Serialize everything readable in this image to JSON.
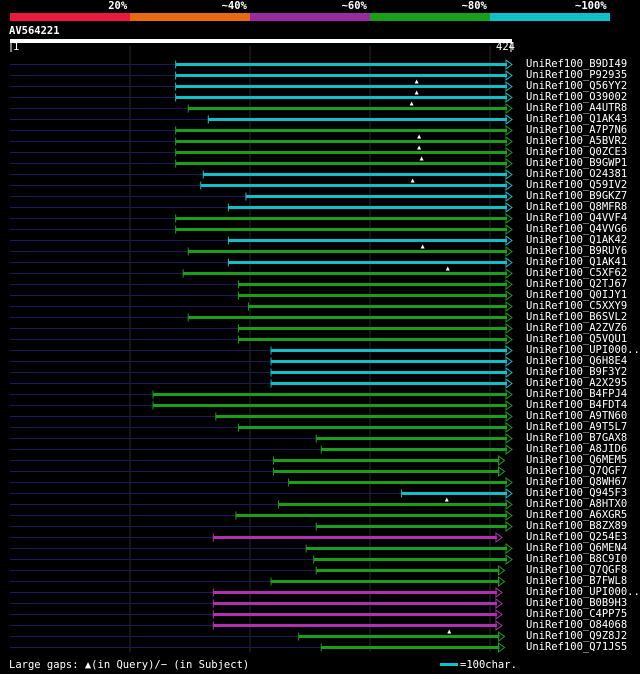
{
  "scale_labels": [
    "20%",
    "~40%",
    "~60%",
    "~80%",
    "~100%"
  ],
  "scale_colors": [
    "#e8193c",
    "#e86a10",
    "#9a2aa0",
    "#18a018",
    "#10c0c8"
  ],
  "query": {
    "title": "AV564221",
    "start": "1",
    "end": "424"
  },
  "legend": {
    "gaps_text": "Large gaps: ▲(in Query)/− (in Subject)",
    "scale_text": "=100char."
  },
  "hits": [
    {
      "name": "UniRef100_B9DI49",
      "color": "cyan",
      "start": 0.33,
      "end": 1.0,
      "gap": null
    },
    {
      "name": "UniRef100_P92935",
      "color": "cyan",
      "start": 0.33,
      "end": 1.0,
      "gap": null
    },
    {
      "name": "UniRef100_Q56YY2",
      "color": "cyan",
      "start": 0.33,
      "end": 1.0,
      "gap": 0.81
    },
    {
      "name": "UniRef100_O39002",
      "color": "cyan",
      "start": 0.33,
      "end": 1.0,
      "gap": 0.81
    },
    {
      "name": "UniRef100_A4UTR8",
      "color": "green",
      "start": 0.355,
      "end": 1.0,
      "gap": 0.8
    },
    {
      "name": "UniRef100_Q1AK43",
      "color": "cyan",
      "start": 0.395,
      "end": 1.0,
      "gap": null
    },
    {
      "name": "UniRef100_A7P7N6",
      "color": "green",
      "start": 0.33,
      "end": 1.0,
      "gap": null
    },
    {
      "name": "UniRef100_A5BVR2",
      "color": "green",
      "start": 0.33,
      "end": 1.0,
      "gap": 0.815
    },
    {
      "name": "UniRef100_Q0ZCE3",
      "color": "green",
      "start": 0.33,
      "end": 1.0,
      "gap": 0.815
    },
    {
      "name": "UniRef100_B9GWP1",
      "color": "green",
      "start": 0.33,
      "end": 1.0,
      "gap": 0.82
    },
    {
      "name": "UniRef100_O24381",
      "color": "cyan",
      "start": 0.385,
      "end": 1.0,
      "gap": null
    },
    {
      "name": "UniRef100_Q59IV2",
      "color": "cyan",
      "start": 0.38,
      "end": 1.0,
      "gap": 0.802
    },
    {
      "name": "UniRef100_B9GKZ7",
      "color": "cyan",
      "start": 0.47,
      "end": 1.0,
      "gap": null
    },
    {
      "name": "UniRef100_Q8MFR8",
      "color": "cyan",
      "start": 0.435,
      "end": 1.0,
      "gap": null
    },
    {
      "name": "UniRef100_Q4VVF4",
      "color": "green",
      "start": 0.33,
      "end": 1.0,
      "gap": null
    },
    {
      "name": "UniRef100_Q4VVG6",
      "color": "green",
      "start": 0.33,
      "end": 1.0,
      "gap": null
    },
    {
      "name": "UniRef100_Q1AK42",
      "color": "cyan",
      "start": 0.435,
      "end": 1.0,
      "gap": null
    },
    {
      "name": "UniRef100_B9RUY6",
      "color": "green",
      "start": 0.355,
      "end": 1.0,
      "gap": 0.822
    },
    {
      "name": "UniRef100_Q1AK41",
      "color": "cyan",
      "start": 0.435,
      "end": 1.0,
      "gap": null
    },
    {
      "name": "UniRef100_C5XF62",
      "color": "green",
      "start": 0.345,
      "end": 1.0,
      "gap": 0.872
    },
    {
      "name": "UniRef100_Q2TJ67",
      "color": "green",
      "start": 0.455,
      "end": 1.0,
      "gap": null
    },
    {
      "name": "UniRef100_Q0IJY1",
      "color": "green",
      "start": 0.455,
      "end": 1.0,
      "gap": null
    },
    {
      "name": "UniRef100_C5XXY9",
      "color": "green",
      "start": 0.475,
      "end": 1.0,
      "gap": null
    },
    {
      "name": "UniRef100_B6SVL2",
      "color": "green",
      "start": 0.355,
      "end": 1.0,
      "gap": null
    },
    {
      "name": "UniRef100_A2ZVZ6",
      "color": "green",
      "start": 0.455,
      "end": 1.0,
      "gap": null
    },
    {
      "name": "UniRef100_Q5VQU1",
      "color": "green",
      "start": 0.455,
      "end": 1.0,
      "gap": null
    },
    {
      "name": "UniRef100_UPI000..",
      "color": "cyan",
      "start": 0.52,
      "end": 1.0,
      "gap": null
    },
    {
      "name": "UniRef100_Q6H8E4",
      "color": "cyan",
      "start": 0.52,
      "end": 1.0,
      "gap": null
    },
    {
      "name": "UniRef100_B9F3Y2",
      "color": "cyan",
      "start": 0.52,
      "end": 1.0,
      "gap": null
    },
    {
      "name": "UniRef100_A2X295",
      "color": "cyan",
      "start": 0.52,
      "end": 1.0,
      "gap": null
    },
    {
      "name": "UniRef100_B4FPJ4",
      "color": "green",
      "start": 0.285,
      "end": 1.0,
      "gap": null
    },
    {
      "name": "UniRef100_B4FDT4",
      "color": "green",
      "start": 0.285,
      "end": 1.0,
      "gap": null
    },
    {
      "name": "UniRef100_A9TN60",
      "color": "green",
      "start": 0.41,
      "end": 1.0,
      "gap": null
    },
    {
      "name": "UniRef100_A9T5L7",
      "color": "green",
      "start": 0.455,
      "end": 1.0,
      "gap": null
    },
    {
      "name": "UniRef100_B7GAX8",
      "color": "green",
      "start": 0.61,
      "end": 1.0,
      "gap": null
    },
    {
      "name": "UniRef100_A8JID6",
      "color": "green",
      "start": 0.62,
      "end": 1.0,
      "gap": null
    },
    {
      "name": "UniRef100_Q6MEM5",
      "color": "green",
      "start": 0.525,
      "end": 0.985,
      "gap": null
    },
    {
      "name": "UniRef100_Q7QGF7",
      "color": "green",
      "start": 0.525,
      "end": 0.985,
      "gap": null
    },
    {
      "name": "UniRef100_Q8WH67",
      "color": "green",
      "start": 0.555,
      "end": 1.0,
      "gap": null
    },
    {
      "name": "UniRef100_Q945F3",
      "color": "cyan",
      "start": 0.78,
      "end": 1.0,
      "gap": null
    },
    {
      "name": "UniRef100_A8HTX0",
      "color": "green",
      "start": 0.535,
      "end": 1.0,
      "gap": 0.87
    },
    {
      "name": "UniRef100_A6XGR5",
      "color": "green",
      "start": 0.45,
      "end": 1.0,
      "gap": null
    },
    {
      "name": "UniRef100_B8ZX89",
      "color": "green",
      "start": 0.61,
      "end": 1.0,
      "gap": null
    },
    {
      "name": "UniRef100_Q254E3",
      "color": "purple",
      "start": 0.405,
      "end": 0.98,
      "gap": null
    },
    {
      "name": "UniRef100_Q6MEN4",
      "color": "green",
      "start": 0.59,
      "end": 1.0,
      "gap": null
    },
    {
      "name": "UniRef100_B8C9I0",
      "color": "green",
      "start": 0.605,
      "end": 1.0,
      "gap": null
    },
    {
      "name": "UniRef100_Q7QGF8",
      "color": "green",
      "start": 0.61,
      "end": 0.985,
      "gap": null
    },
    {
      "name": "UniRef100_B7FWL8",
      "color": "green",
      "start": 0.52,
      "end": 0.985,
      "gap": null
    },
    {
      "name": "UniRef100_UPI000..",
      "color": "purple",
      "start": 0.405,
      "end": 0.98,
      "gap": null
    },
    {
      "name": "UniRef100_B0B9H3",
      "color": "purple",
      "start": 0.405,
      "end": 0.98,
      "gap": null
    },
    {
      "name": "UniRef100_C4PP75",
      "color": "purple",
      "start": 0.405,
      "end": 0.98,
      "gap": null
    },
    {
      "name": "UniRef100_O84068",
      "color": "purple",
      "start": 0.405,
      "end": 0.98,
      "gap": null
    },
    {
      "name": "UniRef100_Q9Z8J2",
      "color": "green",
      "start": 0.575,
      "end": 0.985,
      "gap": 0.875
    },
    {
      "name": "UniRef100_Q71JS5",
      "color": "green",
      "start": 0.62,
      "end": 0.985,
      "gap": null
    }
  ]
}
